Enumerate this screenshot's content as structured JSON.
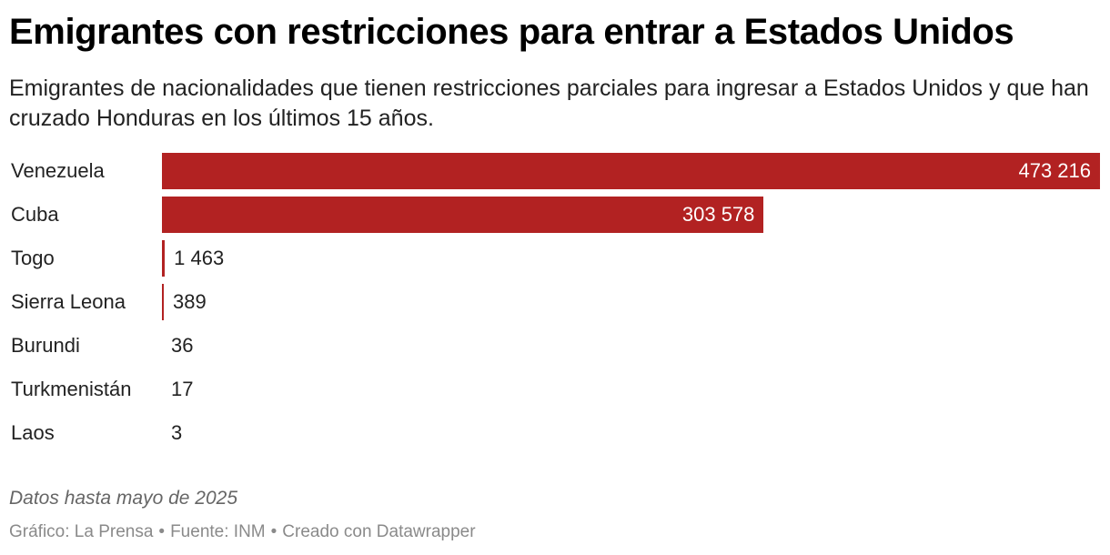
{
  "header": {
    "title": "Emigrantes con restricciones para entrar a Estados Unidos",
    "subtitle": "Emigrantes de nacionalidades que tienen restricciones parciales para ingresar a Estados Unidos y que han cruzado Honduras en los últimos 15 años."
  },
  "colors": {
    "bar": "#b22222"
  },
  "chart_data": {
    "type": "bar",
    "orientation": "horizontal",
    "categories": [
      "Venezuela",
      "Cuba",
      "Togo",
      "Sierra Leona",
      "Burundi",
      "Turkmenistán",
      "Laos"
    ],
    "values": [
      473216,
      303578,
      1463,
      389,
      36,
      17,
      3
    ],
    "value_labels": [
      "473 216",
      "303 578",
      "1 463",
      "389",
      "36",
      "17",
      "3"
    ],
    "xlim": [
      0,
      473216
    ],
    "grid": false,
    "legend": "none"
  },
  "footer": {
    "note": "Datos hasta mayo de 2025",
    "credit": "Gráfico: La Prensa",
    "source": "Fuente: INM",
    "tool": "Creado con Datawrapper",
    "separator": "•"
  }
}
